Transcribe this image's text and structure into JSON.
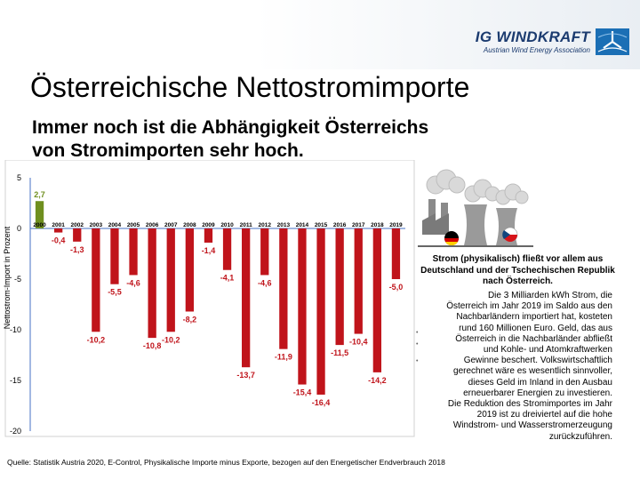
{
  "logo": {
    "name": "IG WINDKRAFT",
    "tagline": "Austrian Wind Energy Association"
  },
  "title": "Österreichische Nettostromimporte",
  "subtitle": {
    "line1": "Immer noch ist die Abhängigkeit Österreichs",
    "line2": "von Stromimporten sehr hoch."
  },
  "chart_data": {
    "type": "bar",
    "ylabel": "Nettostrom-Import in Prozent",
    "ylim": [
      -20,
      5
    ],
    "yticks": [
      "5",
      "0",
      "-5",
      "-10",
      "-15",
      "-20"
    ],
    "ytick_values": [
      5,
      0,
      -5,
      -10,
      -15,
      -20
    ],
    "categories": [
      "2000",
      "2001",
      "2002",
      "2003",
      "2004",
      "2005",
      "2006",
      "2007",
      "2008",
      "2009",
      "2010",
      "2011",
      "2012",
      "2013",
      "2014",
      "2015",
      "2016",
      "2017",
      "2018",
      "2019"
    ],
    "values": [
      2.7,
      -0.4,
      -1.3,
      -10.2,
      -5.5,
      -4.6,
      -10.8,
      -10.2,
      -8.2,
      -1.4,
      -4.1,
      -13.7,
      -4.6,
      -11.9,
      -15.4,
      -16.4,
      -11.5,
      -10.4,
      -14.2,
      -5.0
    ],
    "labels": [
      "2,7",
      "-0,4",
      "-1,3",
      "-10,2",
      "-5,5",
      "-4,6",
      "-10,8",
      "-10,2",
      "-8,2",
      "-1,4",
      "-4,1",
      "-13,7",
      "-4,6",
      "-11,9",
      "-15,4",
      "-16,4",
      "-11,5",
      "-10,4",
      "-14,2",
      "-5,0"
    ],
    "colors": {
      "positive": "#6f8f1f",
      "negative": "#c0141b"
    },
    "grid": false,
    "legend": false
  },
  "info": {
    "bold_text": "Strom (physikalisch) fließt vor allem aus Deutschland und der Tschechischen Republik nach Österreich.",
    "body_lines": [
      "Die 3 Milliarden kWh Strom, die",
      "Österreich im Jahr 2019 im Saldo aus den",
      "Nachbarländern importiert hat, kosteten",
      "rund 160 Millionen Euro. Geld, das aus",
      "Österreich in die Nachbarländer abfließt",
      "und Kohle- und Atomkraftwerken",
      "Gewinne beschert. Volkswirtschaftlich",
      "gerechnet wäre es wesentlich sinnvoller,",
      "dieses Geld im Inland in den Ausbau",
      "erneuerbarer Energien zu investieren.",
      "Die Reduktion des Stromimportes im Jahr",
      "2019 ist zu dreiviertel auf die hohe",
      "Windstrom- und Wasserstromerzeugung",
      "zurückzuführen."
    ]
  },
  "source": "Quelle: Statistik Austria 2020, E-Control, Physikalische Importe minus Exporte, bezogen auf den Energetischer Endverbrauch 2018"
}
